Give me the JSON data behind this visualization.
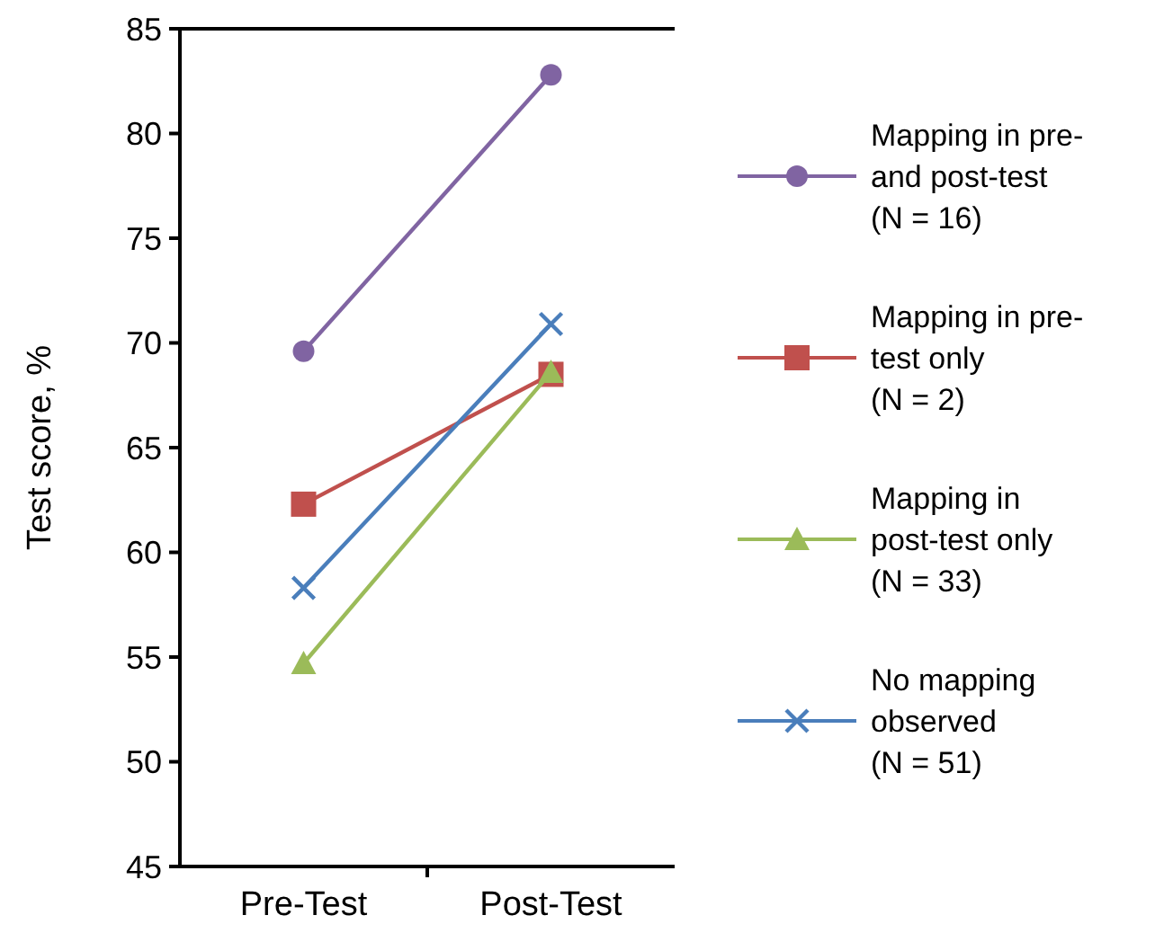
{
  "chart_data": {
    "type": "line",
    "ylabel": "Test score, %",
    "categories": [
      "Pre-Test",
      "Post-Test"
    ],
    "ylim": [
      45,
      85
    ],
    "yticks": [
      45,
      50,
      55,
      60,
      65,
      70,
      75,
      80,
      85
    ],
    "grid": false,
    "legend": "right",
    "series": [
      {
        "name": "Mapping in pre-\nand post-test\n(N = 16)",
        "color": "#8064a2",
        "marker": "circle",
        "values": [
          69.6,
          82.8
        ]
      },
      {
        "name": "Mapping in pre-\ntest only\n(N = 2)",
        "color": "#c0504d",
        "marker": "square",
        "values": [
          62.3,
          68.5
        ]
      },
      {
        "name": "Mapping in\npost-test only\n(N = 33)",
        "color": "#9bbb59",
        "marker": "triangle",
        "values": [
          54.7,
          68.6
        ]
      },
      {
        "name": "No mapping\nobserved\n(N = 51)",
        "color": "#4a7ebb",
        "marker": "cross",
        "values": [
          58.3,
          70.9
        ]
      }
    ]
  }
}
